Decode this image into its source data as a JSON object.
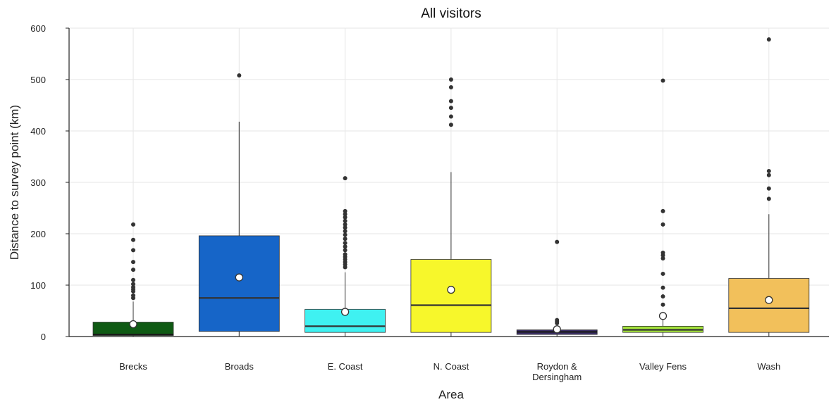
{
  "chart_data": {
    "type": "boxplot",
    "title": "All visitors",
    "xlabel": "Area",
    "ylabel": "Distance to survey point (km)",
    "ylim": [
      0,
      600
    ],
    "yticks": [
      0,
      100,
      200,
      300,
      400,
      500,
      600
    ],
    "grid": true,
    "categories": [
      {
        "label": [
          "Brecks"
        ],
        "color": "#0f5a14",
        "q1": 2,
        "median": 4,
        "q3": 28,
        "whisker_low": 0,
        "whisker_high": 68,
        "mean": 24,
        "outliers": [
          75,
          80,
          88,
          92,
          96,
          102,
          110,
          130,
          145,
          168,
          188,
          218
        ]
      },
      {
        "label": [
          "Broads"
        ],
        "color": "#1665c8",
        "q1": 10,
        "median": 75,
        "q3": 196,
        "whisker_low": 0,
        "whisker_high": 418,
        "mean": 115,
        "outliers": [
          508
        ]
      },
      {
        "label": [
          "E. Coast"
        ],
        "color": "#3ff1f1",
        "q1": 8,
        "median": 20,
        "q3": 53,
        "whisker_low": 0,
        "whisker_high": 125,
        "mean": 48,
        "outliers": [
          135,
          140,
          145,
          150,
          155,
          160,
          168,
          175,
          182,
          190,
          198,
          205,
          212,
          218,
          225,
          232,
          238,
          244,
          308
        ]
      },
      {
        "label": [
          "N. Coast"
        ],
        "color": "#f7f72b",
        "q1": 8,
        "median": 61,
        "q3": 150,
        "whisker_low": 0,
        "whisker_high": 320,
        "mean": 91,
        "outliers": [
          412,
          428,
          445,
          458,
          485,
          500
        ]
      },
      {
        "label": [
          "Roydon &",
          "Dersingham"
        ],
        "color": "#3a2e66",
        "q1": 4,
        "median": 9,
        "q3": 13,
        "whisker_low": 0,
        "whisker_high": 22,
        "mean": 14,
        "outliers": [
          26,
          29,
          32,
          184
        ]
      },
      {
        "label": [
          "Valley Fens"
        ],
        "color": "#a3e23a",
        "q1": 8,
        "median": 13,
        "q3": 20,
        "whisker_low": 0,
        "whisker_high": 34,
        "mean": 40,
        "outliers": [
          62,
          78,
          95,
          122,
          152,
          158,
          163,
          218,
          244,
          498
        ]
      },
      {
        "label": [
          "Wash"
        ],
        "color": "#f2c05b",
        "q1": 8,
        "median": 55,
        "q3": 113,
        "whisker_low": 0,
        "whisker_high": 238,
        "mean": 71,
        "outliers": [
          268,
          288,
          314,
          322,
          578
        ]
      }
    ]
  }
}
